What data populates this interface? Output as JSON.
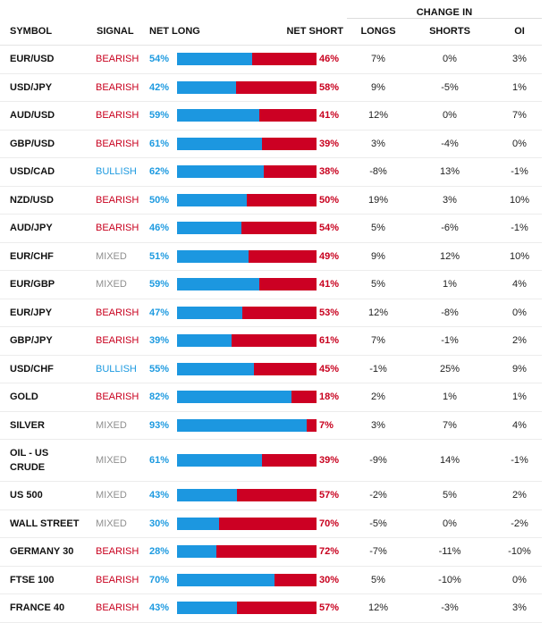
{
  "table": {
    "group_header": "CHANGE IN",
    "columns": {
      "symbol": "SYMBOL",
      "signal": "SIGNAL",
      "net_long": "NET LONG",
      "net_short": "NET SHORT",
      "longs": "LONGS",
      "shorts": "SHORTS",
      "oi": "OI"
    },
    "colors": {
      "long": "#1c97e0",
      "short": "#cc0023",
      "bearish": "#c8001e",
      "bullish": "#1d9ae0",
      "mixed": "#8f8f8f"
    },
    "rows": [
      {
        "symbol": "EUR/USD",
        "signal": "BEARISH",
        "net_long": "54%",
        "long_fraction": 0.54,
        "net_short": "46%",
        "longs": "7%",
        "shorts": "0%",
        "oi": "3%"
      },
      {
        "symbol": "USD/JPY",
        "signal": "BEARISH",
        "net_long": "42%",
        "long_fraction": 0.42,
        "net_short": "58%",
        "longs": "9%",
        "shorts": "-5%",
        "oi": "1%"
      },
      {
        "symbol": "AUD/USD",
        "signal": "BEARISH",
        "net_long": "59%",
        "long_fraction": 0.59,
        "net_short": "41%",
        "longs": "12%",
        "shorts": "0%",
        "oi": "7%"
      },
      {
        "symbol": "GBP/USD",
        "signal": "BEARISH",
        "net_long": "61%",
        "long_fraction": 0.61,
        "net_short": "39%",
        "longs": "3%",
        "shorts": "-4%",
        "oi": "0%"
      },
      {
        "symbol": "USD/CAD",
        "signal": "BULLISH",
        "net_long": "62%",
        "long_fraction": 0.62,
        "net_short": "38%",
        "longs": "-8%",
        "shorts": "13%",
        "oi": "-1%"
      },
      {
        "symbol": "NZD/USD",
        "signal": "BEARISH",
        "net_long": "50%",
        "long_fraction": 0.5,
        "net_short": "50%",
        "longs": "19%",
        "shorts": "3%",
        "oi": "10%"
      },
      {
        "symbol": "AUD/JPY",
        "signal": "BEARISH",
        "net_long": "46%",
        "long_fraction": 0.46,
        "net_short": "54%",
        "longs": "5%",
        "shorts": "-6%",
        "oi": "-1%"
      },
      {
        "symbol": "EUR/CHF",
        "signal": "MIXED",
        "net_long": "51%",
        "long_fraction": 0.51,
        "net_short": "49%",
        "longs": "9%",
        "shorts": "12%",
        "oi": "10%"
      },
      {
        "symbol": "EUR/GBP",
        "signal": "MIXED",
        "net_long": "59%",
        "long_fraction": 0.59,
        "net_short": "41%",
        "longs": "5%",
        "shorts": "1%",
        "oi": "4%"
      },
      {
        "symbol": "EUR/JPY",
        "signal": "BEARISH",
        "net_long": "47%",
        "long_fraction": 0.47,
        "net_short": "53%",
        "longs": "12%",
        "shorts": "-8%",
        "oi": "0%"
      },
      {
        "symbol": "GBP/JPY",
        "signal": "BEARISH",
        "net_long": "39%",
        "long_fraction": 0.39,
        "net_short": "61%",
        "longs": "7%",
        "shorts": "-1%",
        "oi": "2%"
      },
      {
        "symbol": "USD/CHF",
        "signal": "BULLISH",
        "net_long": "55%",
        "long_fraction": 0.55,
        "net_short": "45%",
        "longs": "-1%",
        "shorts": "25%",
        "oi": "9%"
      },
      {
        "symbol": "GOLD",
        "signal": "BEARISH",
        "net_long": "82%",
        "long_fraction": 0.82,
        "net_short": "18%",
        "longs": "2%",
        "shorts": "1%",
        "oi": "1%"
      },
      {
        "symbol": "SILVER",
        "signal": "MIXED",
        "net_long": "93%",
        "long_fraction": 0.93,
        "net_short": "7%",
        "longs": "3%",
        "shorts": "7%",
        "oi": "4%"
      },
      {
        "symbol": "OIL - US CRUDE",
        "signal": "MIXED",
        "net_long": "61%",
        "long_fraction": 0.61,
        "net_short": "39%",
        "longs": "-9%",
        "shorts": "14%",
        "oi": "-1%",
        "tall": true
      },
      {
        "symbol": "US 500",
        "signal": "MIXED",
        "net_long": "43%",
        "long_fraction": 0.43,
        "net_short": "57%",
        "longs": "-2%",
        "shorts": "5%",
        "oi": "2%"
      },
      {
        "symbol": "WALL STREET",
        "signal": "MIXED",
        "net_long": "30%",
        "long_fraction": 0.3,
        "net_short": "70%",
        "longs": "-5%",
        "shorts": "0%",
        "oi": "-2%"
      },
      {
        "symbol": "GERMANY 30",
        "signal": "BEARISH",
        "net_long": "28%",
        "long_fraction": 0.28,
        "net_short": "72%",
        "longs": "-7%",
        "shorts": "-11%",
        "oi": "-10%"
      },
      {
        "symbol": "FTSE 100",
        "signal": "BEARISH",
        "net_long": "70%",
        "long_fraction": 0.7,
        "net_short": "30%",
        "longs": "5%",
        "shorts": "-10%",
        "oi": "0%"
      },
      {
        "symbol": "FRANCE 40",
        "signal": "BEARISH",
        "net_long": "43%",
        "long_fraction": 0.43,
        "net_short": "57%",
        "longs": "12%",
        "shorts": "-3%",
        "oi": "3%"
      }
    ]
  }
}
